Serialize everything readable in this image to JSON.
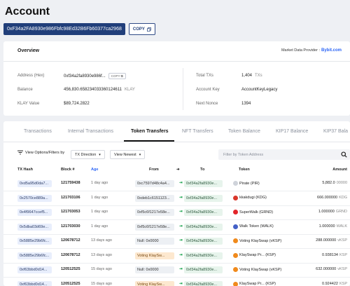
{
  "page": {
    "title": "Account"
  },
  "address": {
    "value": "0xF34a2FA8930e986Fbfc98Ed32B6Fb60377ca2968",
    "copy_label": "COPY"
  },
  "overview": {
    "title": "Overview",
    "provider_label": "Market Data Provider :",
    "provider_name": "Bybit.com",
    "address_label": "Address (Hex)",
    "address_value": "0xf34a2fa8930e986f...",
    "copy_label": "COPY",
    "balance_label": "Balance",
    "balance_value": "456,830.658234033360124611",
    "balance_unit": "KLAY",
    "klay_value_label": "KLAY Value",
    "klay_value": "$89,724.2822",
    "total_txs_label": "Total TXs",
    "total_txs_value": "1,404",
    "total_txs_unit": "TXs",
    "account_key_label": "Account Key",
    "account_key_value": "AccountKeyLegacy",
    "next_nonce_label": "Next Nonce",
    "next_nonce_value": "1394"
  },
  "tabs": [
    "Transactions",
    "Internal Transactions",
    "Token Transfers",
    "NFT Transfers",
    "Token Balance",
    "KIP17 Balance",
    "KIP37 Bala"
  ],
  "filters": {
    "options_label": "View Options/Filters by",
    "direction_label": "TX Direction",
    "sort_label": "View Newest",
    "search_placeholder": "Filter by Token Address"
  },
  "table": {
    "headers": {
      "hash": "TX Hash",
      "block": "Block #",
      "age": "Age",
      "from": "From",
      "to": "To",
      "token": "Token",
      "amount": "Amount"
    },
    "rows": [
      {
        "hash": "0xd5a95d0da7...",
        "block": "121759438",
        "age": "1 day ago",
        "from": "0xc7597d48c4a4...",
        "to": "0xf34a2fa8930e...",
        "token": "Pirate (PIR)",
        "amount": "5,882.0",
        "unit": "00000",
        "icon_color": "#cfd3da"
      },
      {
        "hash": "0x2570ce889a...",
        "block": "121703106",
        "age": "1 day ago",
        "from": "0xdeb1c6151123...",
        "to": "0xf34a2fa8930e...",
        "token": "kkakdugi (KDG)",
        "amount": "666.000000",
        "unit": "KDG",
        "icon_color": "#d9362b"
      },
      {
        "hash": "0x4f9647ccef5...",
        "block": "121703053",
        "age": "1 day ago",
        "from": "0xf5c6f1217e58e...",
        "to": "0xf34a2fa8930e...",
        "token": "SuperWalk (GRND)",
        "amount": "1.000000",
        "unit": "GRND",
        "icon_color": "#e2242a"
      },
      {
        "hash": "0x5dba03d69e...",
        "block": "121703030",
        "age": "1 day ago",
        "from": "0xf5c6f1217e58e...",
        "to": "0xf34a2fa8930e...",
        "token": "Walk Token (WALK)",
        "amount": "1.000000",
        "unit": "WALK",
        "icon_color": "#4461c7"
      },
      {
        "hash": "0x5885e29b6fc...",
        "block": "120678712",
        "age": "13 days ago",
        "from": "Null: 0x0000",
        "to": "0xf34a2fa8930e...",
        "token": "Voting KlaySwap (vKSP)",
        "amount": "288.000000",
        "unit": "vKSP",
        "icon_color": "#f08a1c",
        "swap": false
      },
      {
        "hash": "0x5885e29b6fc...",
        "block": "120678712",
        "age": "13 days ago",
        "from": "Voting KlaySw...",
        "to": "0xf34a2fa8930e...",
        "token": "KlaySwap Pr... (KSP)",
        "amount": "0.938134",
        "unit": "KSP",
        "icon_color": "#f08a1c",
        "swap": true
      },
      {
        "hash": "0xf63bbd0d14...",
        "block": "120512525",
        "age": "15 days ago",
        "from": "Null: 0x0000",
        "to": "0xf34a2fa8930e...",
        "token": "Voting KlaySwap (vKSP)",
        "amount": "632.000000",
        "unit": "vKSP",
        "icon_color": "#f08a1c",
        "swap": false
      },
      {
        "hash": "0xf63bbd0d14...",
        "block": "120512525",
        "age": "15 days ago",
        "from": "Voting KlaySw...",
        "to": "0xf34a2fa8930e...",
        "token": "KlaySwap Pr... (KSP)",
        "amount": "0.924422",
        "unit": "KSP",
        "icon_color": "#f08a1c",
        "swap": true
      }
    ]
  }
}
